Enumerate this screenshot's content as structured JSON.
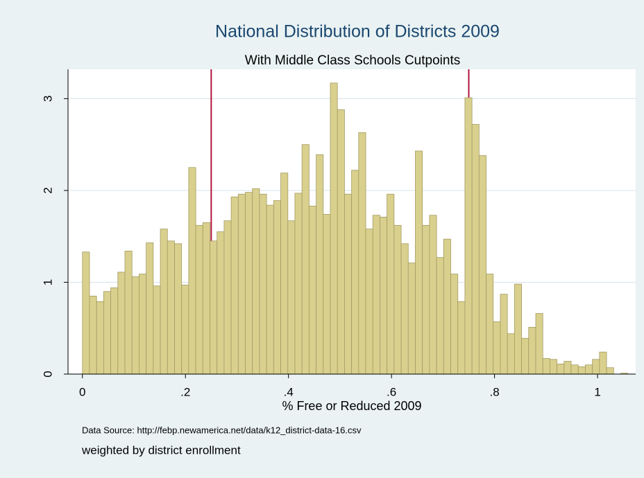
{
  "chart_data": {
    "type": "histogram",
    "title": "National Distribution of Districts 2009",
    "subtitle": "With Middle Class Schools Cutpoints",
    "x_label": "% Free or Reduced 2009",
    "notes": [
      "Data Source: http://febp.newamerica.net/data/k12_district-data-16.csv",
      "weighted by district enrollment"
    ],
    "bins": [
      0,
      0.01375,
      0.0275,
      0.04125,
      0.055,
      0.06875,
      0.0825,
      0.09625,
      0.11,
      0.12375,
      0.1375,
      0.15125,
      0.165,
      0.17875,
      0.1925,
      0.20625,
      0.22,
      0.23375,
      0.2475,
      0.26125,
      0.275,
      0.28875,
      0.3025,
      0.31625,
      0.33,
      0.34375,
      0.3575,
      0.37125,
      0.385,
      0.39875,
      0.4125,
      0.42625,
      0.44,
      0.45375,
      0.4675,
      0.48125,
      0.495,
      0.50875,
      0.5225,
      0.53625,
      0.55,
      0.56375,
      0.5775,
      0.59125,
      0.605,
      0.61875,
      0.6325,
      0.64625,
      0.66,
      0.67375,
      0.6875,
      0.70125,
      0.715,
      0.72875,
      0.7425,
      0.75625,
      0.77,
      0.78375,
      0.7975,
      0.81125,
      0.825,
      0.83875,
      0.8525,
      0.86625,
      0.88,
      0.89375,
      0.9075,
      0.92125,
      0.935,
      0.94875,
      0.9625,
      0.97625,
      0.99,
      1.00375,
      1.0175,
      1.03125,
      1.045,
      1.05875
    ],
    "values": [
      1.33,
      0.85,
      0.79,
      0.9,
      0.94,
      1.11,
      1.34,
      1.06,
      1.09,
      1.43,
      0.96,
      1.58,
      1.45,
      1.42,
      0.97,
      2.25,
      1.62,
      1.65,
      1.45,
      1.55,
      1.67,
      1.93,
      1.96,
      1.98,
      2.02,
      1.96,
      1.84,
      1.89,
      2.19,
      1.67,
      1.97,
      2.5,
      1.83,
      2.39,
      1.74,
      3.17,
      2.88,
      1.96,
      2.22,
      2.63,
      1.58,
      1.73,
      1.71,
      1.96,
      1.62,
      1.42,
      1.21,
      2.43,
      1.62,
      1.73,
      1.27,
      1.47,
      1.09,
      0.79,
      3.01,
      2.72,
      2.38,
      1.09,
      0.57,
      0.87,
      0.44,
      0.98,
      0.39,
      0.51,
      0.66,
      0.17,
      0.16,
      0.11,
      0.14,
      0.1,
      0.08,
      0.1,
      0.16,
      0.24,
      0.07,
      0,
      0.01
    ],
    "color": "#d9d08e",
    "cutpoints": [
      0.25,
      0.75
    ],
    "cutpoint_color": "#b0153c",
    "xlim": [
      -0.028,
      1.074
    ],
    "ylim": [
      0,
      3.32
    ],
    "xticks": [
      0,
      {
        "value": 0.2,
        "label": ".2"
      },
      {
        "value": 0.4,
        "label": ".4"
      },
      {
        "value": 0.6,
        "label": ".6"
      },
      {
        "value": 0.8,
        "label": ".8"
      },
      1
    ],
    "yticks": [
      0,
      1,
      2,
      3
    ],
    "grid": true
  }
}
